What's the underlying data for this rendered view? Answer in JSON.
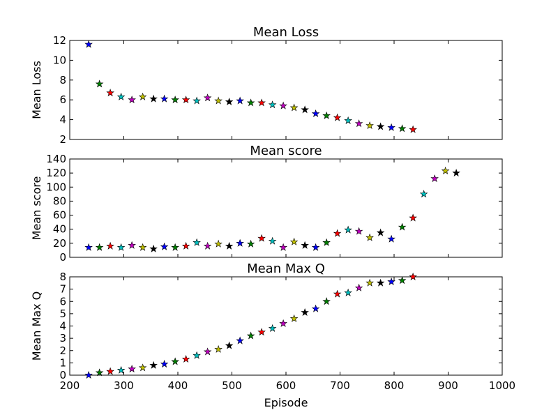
{
  "chart_data": [
    {
      "type": "scatter",
      "title": "Mean Loss",
      "ylabel": "Mean Loss",
      "xlabel": "",
      "xlim": [
        200,
        1000
      ],
      "ylim": [
        2,
        12
      ],
      "xticks": [],
      "yticks": [
        2,
        4,
        6,
        8,
        10,
        12
      ],
      "marker": "star",
      "x": [
        235,
        255,
        275,
        295,
        315,
        335,
        355,
        375,
        395,
        415,
        435,
        455,
        475,
        495,
        515,
        535,
        555,
        575,
        595,
        615,
        635,
        655,
        675,
        695,
        715,
        735,
        755,
        775,
        795,
        815,
        835
      ],
      "y": [
        11.6,
        7.6,
        6.7,
        6.3,
        6.0,
        6.3,
        6.1,
        6.1,
        6.0,
        6.0,
        5.9,
        6.2,
        5.9,
        5.8,
        5.9,
        5.7,
        5.7,
        5.5,
        5.4,
        5.2,
        5.0,
        4.6,
        4.4,
        4.2,
        3.9,
        3.6,
        3.4,
        3.3,
        3.2,
        3.1,
        3.0
      ]
    },
    {
      "type": "scatter",
      "title": "Mean score",
      "ylabel": "Mean score",
      "xlabel": "",
      "xlim": [
        200,
        1000
      ],
      "ylim": [
        0,
        140
      ],
      "xticks": [],
      "yticks": [
        0,
        20,
        40,
        60,
        80,
        100,
        120,
        140
      ],
      "marker": "star",
      "x": [
        235,
        255,
        275,
        295,
        315,
        335,
        355,
        375,
        395,
        415,
        435,
        455,
        475,
        495,
        515,
        535,
        555,
        575,
        595,
        615,
        635,
        655,
        675,
        695,
        715,
        735,
        755,
        775,
        795,
        815,
        835,
        855,
        875,
        895,
        915
      ],
      "y": [
        14,
        14,
        16,
        14,
        17,
        14,
        12,
        15,
        14,
        16,
        21,
        16,
        19,
        16,
        20,
        19,
        27,
        23,
        14,
        22,
        17,
        14,
        21,
        34,
        39,
        37,
        28,
        35,
        26,
        43,
        56,
        90,
        112,
        123,
        120
      ]
    },
    {
      "type": "scatter",
      "title": "Mean Max Q",
      "ylabel": "Mean Max Q",
      "xlabel": "Episode",
      "xlim": [
        200,
        1000
      ],
      "ylim": [
        0,
        8
      ],
      "xticks": [
        200,
        300,
        400,
        500,
        600,
        700,
        800,
        900,
        1000
      ],
      "yticks": [
        0,
        1,
        2,
        3,
        4,
        5,
        6,
        7,
        8
      ],
      "marker": "star",
      "x": [
        235,
        255,
        275,
        295,
        315,
        335,
        355,
        375,
        395,
        415,
        435,
        455,
        475,
        495,
        515,
        535,
        555,
        575,
        595,
        615,
        635,
        655,
        675,
        695,
        715,
        735,
        755,
        775,
        795,
        815,
        835
      ],
      "y": [
        0.0,
        0.2,
        0.3,
        0.4,
        0.5,
        0.6,
        0.8,
        0.9,
        1.1,
        1.3,
        1.6,
        1.9,
        2.1,
        2.4,
        2.8,
        3.2,
        3.5,
        3.8,
        4.2,
        4.6,
        5.1,
        5.4,
        6.0,
        6.6,
        6.7,
        7.1,
        7.5,
        7.5,
        7.6,
        7.7,
        8.0
      ]
    }
  ],
  "colors": {
    "marker_cycle": [
      "#0000ff",
      "#008000",
      "#ff0000",
      "#00bfbf",
      "#bf00bf",
      "#bfbf00",
      "#000000"
    ],
    "axes": "#000000",
    "background": "#ffffff"
  }
}
